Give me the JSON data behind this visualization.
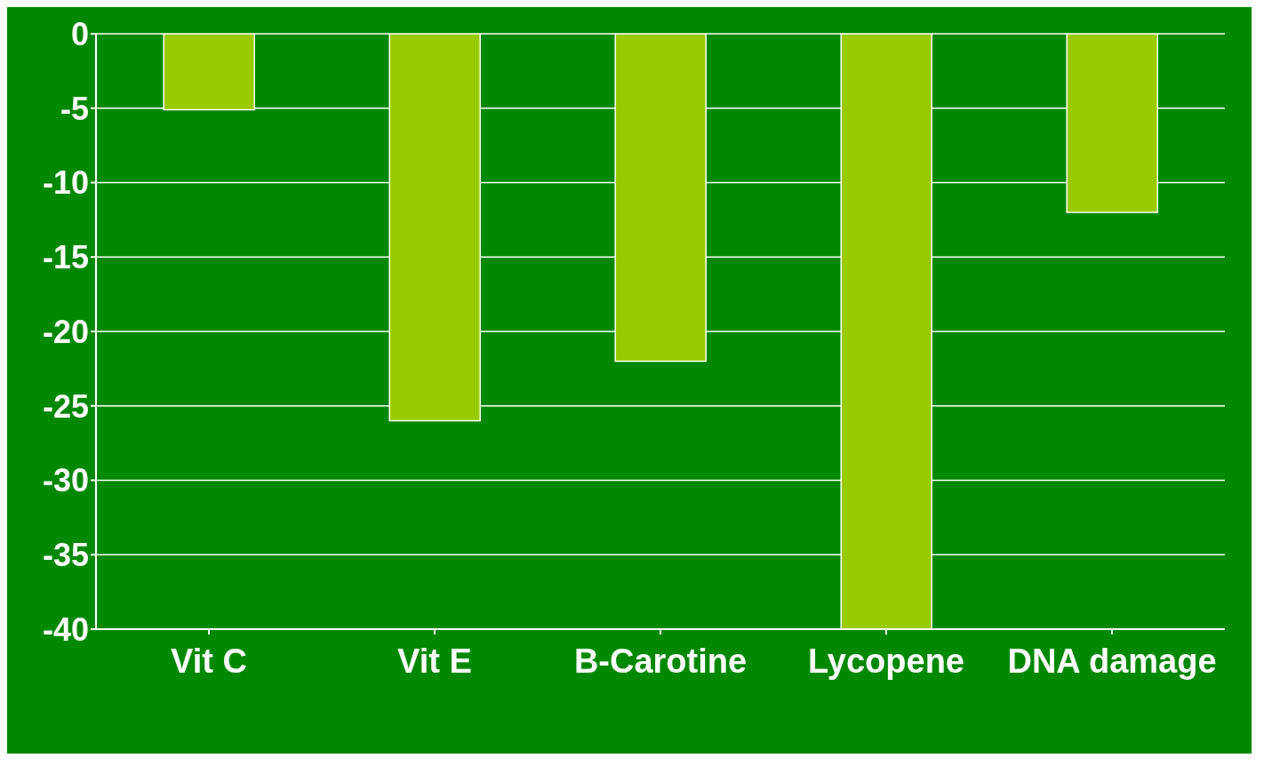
{
  "chart_data": {
    "type": "bar",
    "categories": [
      "Vit C",
      "Vit E",
      "B-Carotine",
      "Lycopene",
      "DNA damage"
    ],
    "values": [
      -5.1,
      -26,
      -22,
      -40,
      -12
    ],
    "color": "#99cc00",
    "ylim": [
      -40,
      0
    ],
    "yticks": [
      0,
      -5,
      -10,
      -15,
      -20,
      -25,
      -30,
      -35,
      -40
    ],
    "grid": "y"
  }
}
